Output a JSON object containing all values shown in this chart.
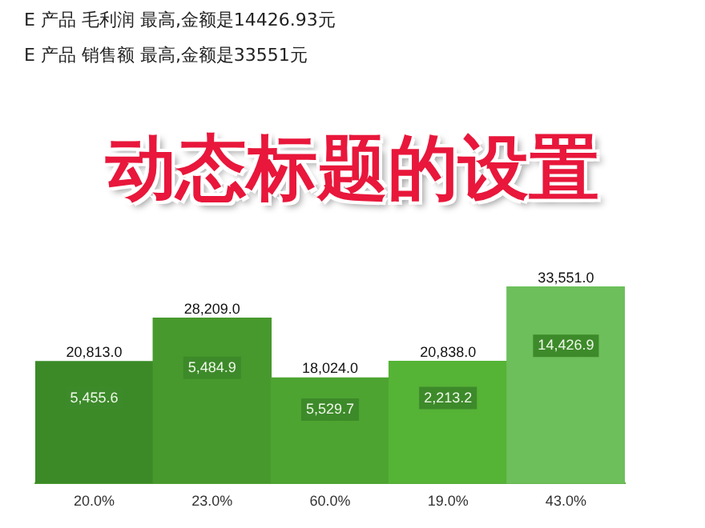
{
  "chart_data": {
    "type": "bar",
    "title": "动态标题的设置",
    "categories": [
      "20.0%",
      "23.0%",
      "60.0%",
      "19.0%",
      "43.0%"
    ],
    "values": [
      20813,
      28209,
      18024,
      20838,
      33551
    ],
    "colors": [
      "#3b8a27",
      "#47992d",
      "#4da431",
      "#55b336",
      "#6dbf5b"
    ],
    "value_labels": [
      "20,813.0",
      "28,209.0",
      "18,024.0",
      "20,838.0",
      "33,551.0"
    ],
    "tick_labels": "x",
    "grid": false,
    "legend": false,
    "annotations": [
      "E 产品 毛利润 最高,金额是14426.93元",
      "E 产品 销售额 最高,金额是33551元",
      {
        "text": "5,455.6",
        "x": "20.0%"
      },
      {
        "text": "5,484.9",
        "x": "23.0%"
      },
      {
        "text": "5,529.7",
        "x": "60.0%"
      },
      {
        "text": "2,213.2",
        "x": "19.0%"
      },
      {
        "text": "14,426.9",
        "x": "43.0%"
      }
    ]
  }
}
